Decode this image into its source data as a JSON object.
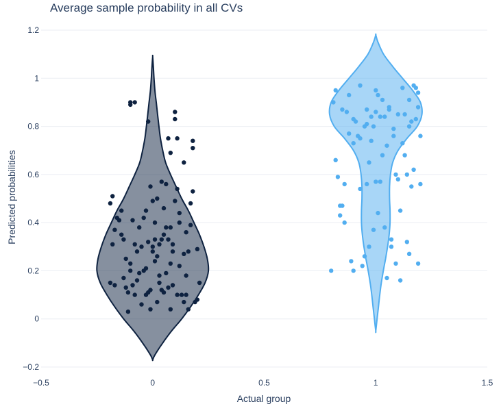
{
  "chart_data": {
    "type": "violin",
    "title": "Average sample probability in all CVs",
    "xlabel": "Actual group",
    "ylabel": "Predicted probabilities",
    "xlim": [
      -0.5,
      1.5
    ],
    "ylim": [
      -0.2,
      1.2
    ],
    "x_ticks": [
      -0.5,
      0,
      0.5,
      1,
      1.5
    ],
    "x_tick_labels": [
      "−0.5",
      "0",
      "0.5",
      "1",
      "1.5"
    ],
    "y_ticks": [
      -0.2,
      0,
      0.2,
      0.4,
      0.6,
      0.8,
      1,
      1.2
    ],
    "y_tick_labels": [
      "−0.2",
      "0",
      "0.2",
      "0.4",
      "0.6",
      "0.8",
      "1",
      "1.2"
    ],
    "grid": true,
    "legend": "none",
    "series": [
      {
        "group": 0,
        "line_color": "#0e2240",
        "fill_color": "#0e2240",
        "fill_opacity": 0.5,
        "violin_profile": [
          [
            -0.17,
            0.0
          ],
          [
            -0.15,
            0.01
          ],
          [
            -0.1,
            0.045
          ],
          [
            -0.05,
            0.085
          ],
          [
            0.0,
            0.13
          ],
          [
            0.05,
            0.17
          ],
          [
            0.1,
            0.205
          ],
          [
            0.15,
            0.235
          ],
          [
            0.2,
            0.25
          ],
          [
            0.25,
            0.245
          ],
          [
            0.3,
            0.23
          ],
          [
            0.35,
            0.21
          ],
          [
            0.4,
            0.185
          ],
          [
            0.45,
            0.16
          ],
          [
            0.5,
            0.13
          ],
          [
            0.55,
            0.105
          ],
          [
            0.6,
            0.08
          ],
          [
            0.65,
            0.058
          ],
          [
            0.7,
            0.045
          ],
          [
            0.75,
            0.035
          ],
          [
            0.8,
            0.028
          ],
          [
            0.85,
            0.022
          ],
          [
            0.9,
            0.016
          ],
          [
            0.95,
            0.01
          ],
          [
            1.0,
            0.006
          ],
          [
            1.05,
            0.003
          ],
          [
            1.09,
            0.0
          ]
        ],
        "points": [
          [
            -0.19,
            0.48
          ],
          [
            -0.18,
            0.51
          ],
          [
            -0.18,
            0.31
          ],
          [
            -0.19,
            0.15
          ],
          [
            -0.17,
            0.14
          ],
          [
            -0.17,
            0.37
          ],
          [
            -0.16,
            0.42
          ],
          [
            -0.15,
            0.41
          ],
          [
            -0.14,
            0.45
          ],
          [
            -0.14,
            0.35
          ],
          [
            -0.13,
            0.33
          ],
          [
            -0.13,
            0.17
          ],
          [
            -0.12,
            0.13
          ],
          [
            -0.12,
            0.25
          ],
          [
            -0.11,
            0.11
          ],
          [
            -0.11,
            0.03
          ],
          [
            -0.1,
            0.23
          ],
          [
            -0.1,
            0.2
          ],
          [
            -0.09,
            0.41
          ],
          [
            -0.09,
            0.14
          ],
          [
            -0.08,
            0.31
          ],
          [
            -0.08,
            0.1
          ],
          [
            -0.1,
            0.9
          ],
          [
            -0.1,
            0.89
          ],
          [
            -0.08,
            0.9
          ],
          [
            -0.07,
            0.28
          ],
          [
            -0.07,
            0.16
          ],
          [
            -0.06,
            0.38
          ],
          [
            -0.06,
            0.19
          ],
          [
            -0.05,
            0.06
          ],
          [
            -0.05,
            0.3
          ],
          [
            -0.04,
            0.2
          ],
          [
            -0.04,
            0.42
          ],
          [
            -0.03,
            0.1
          ],
          [
            -0.03,
            0.21
          ],
          [
            -0.02,
            0.32
          ],
          [
            -0.02,
            0.11
          ],
          [
            -0.01,
            0.12
          ],
          [
            -0.01,
            0.55
          ],
          [
            -0.01,
            0.04
          ],
          [
            -0.02,
            0.82
          ],
          [
            0.0,
            0.49
          ],
          [
            0.0,
            0.28
          ],
          [
            0.01,
            0.24
          ],
          [
            0.01,
            0.33
          ],
          [
            0.02,
            0.07
          ],
          [
            0.02,
            0.5
          ],
          [
            0.03,
            0.18
          ],
          [
            0.03,
            0.15
          ],
          [
            0.04,
            0.57
          ],
          [
            0.04,
            0.33
          ],
          [
            0.05,
            0.11
          ],
          [
            0.05,
            0.35
          ],
          [
            0.06,
            0.38
          ],
          [
            0.06,
            0.56
          ],
          [
            0.07,
            0.75
          ],
          [
            0.07,
            0.33
          ],
          [
            0.07,
            0.13
          ],
          [
            0.08,
            0.04
          ],
          [
            0.08,
            0.38
          ],
          [
            0.09,
            0.28
          ],
          [
            0.09,
            0.14
          ],
          [
            0.1,
            0.83
          ],
          [
            0.1,
            0.86
          ],
          [
            0.1,
            0.49
          ],
          [
            0.11,
            0.1
          ],
          [
            0.11,
            0.54
          ],
          [
            0.12,
            0.4
          ],
          [
            0.12,
            0.22
          ],
          [
            0.13,
            0.1
          ],
          [
            0.14,
            0.07
          ],
          [
            0.14,
            0.27
          ],
          [
            0.15,
            0.36
          ],
          [
            0.15,
            0.1
          ],
          [
            0.16,
            0.04
          ],
          [
            0.16,
            0.28
          ],
          [
            0.17,
            0.39
          ],
          [
            0.17,
            0.48
          ],
          [
            0.18,
            0.53
          ],
          [
            0.18,
            0.74
          ],
          [
            0.18,
            0.71
          ],
          [
            0.19,
            0.07
          ],
          [
            0.2,
            0.29
          ],
          [
            0.2,
            0.08
          ],
          [
            0.21,
            0.15
          ],
          [
            0.14,
            0.65
          ],
          [
            0.08,
            0.69
          ],
          [
            0.11,
            0.75
          ],
          [
            0.05,
            0.46
          ],
          [
            0.03,
            0.31
          ],
          [
            0.0,
            0.3
          ],
          [
            -0.03,
            0.45
          ],
          [
            0.02,
            0.26
          ],
          [
            0.06,
            0.19
          ],
          [
            0.09,
            0.31
          ],
          [
            0.12,
            0.44
          ],
          [
            0.15,
            0.18
          ],
          [
            0.01,
            0.4
          ],
          [
            0.04,
            0.12
          ],
          [
            0.08,
            0.23
          ]
        ]
      },
      {
        "group": 1,
        "line_color": "#52aef0",
        "fill_color": "#52aef0",
        "fill_opacity": 0.5,
        "violin_profile": [
          [
            -0.05,
            0.0
          ],
          [
            0.0,
            0.006
          ],
          [
            0.05,
            0.012
          ],
          [
            0.1,
            0.018
          ],
          [
            0.15,
            0.025
          ],
          [
            0.2,
            0.034
          ],
          [
            0.25,
            0.044
          ],
          [
            0.3,
            0.053
          ],
          [
            0.35,
            0.06
          ],
          [
            0.4,
            0.064
          ],
          [
            0.45,
            0.064
          ],
          [
            0.5,
            0.062
          ],
          [
            0.55,
            0.062
          ],
          [
            0.6,
            0.066
          ],
          [
            0.65,
            0.076
          ],
          [
            0.7,
            0.1
          ],
          [
            0.75,
            0.14
          ],
          [
            0.8,
            0.186
          ],
          [
            0.85,
            0.207
          ],
          [
            0.9,
            0.2
          ],
          [
            0.95,
            0.165
          ],
          [
            1.0,
            0.12
          ],
          [
            1.05,
            0.075
          ],
          [
            1.1,
            0.035
          ],
          [
            1.15,
            0.01
          ],
          [
            1.18,
            0.0
          ]
        ],
        "points": [
          [
            0.8,
            0.2
          ],
          [
            0.81,
            0.9
          ],
          [
            0.82,
            0.95
          ],
          [
            0.82,
            0.66
          ],
          [
            0.83,
            0.59
          ],
          [
            0.84,
            0.47
          ],
          [
            0.84,
            0.43
          ],
          [
            0.85,
            0.47
          ],
          [
            0.86,
            0.4
          ],
          [
            0.86,
            0.56
          ],
          [
            0.87,
            0.86
          ],
          [
            0.88,
            0.93
          ],
          [
            0.89,
            0.24
          ],
          [
            0.9,
            0.2
          ],
          [
            0.9,
            0.73
          ],
          [
            0.91,
            0.82
          ],
          [
            0.92,
            0.76
          ],
          [
            0.93,
            0.97
          ],
          [
            0.93,
            0.75
          ],
          [
            0.94,
            0.22
          ],
          [
            0.95,
            0.26
          ],
          [
            0.96,
            0.81
          ],
          [
            0.96,
            0.87
          ],
          [
            0.97,
            0.3
          ],
          [
            0.98,
            0.74
          ],
          [
            0.98,
            0.84
          ],
          [
            0.99,
            0.37
          ],
          [
            0.99,
            0.8
          ],
          [
            1.0,
            0.95
          ],
          [
            1.0,
            0.57
          ],
          [
            1.01,
            0.93
          ],
          [
            1.02,
            0.84
          ],
          [
            1.03,
            0.68
          ],
          [
            1.03,
            0.91
          ],
          [
            1.04,
            0.84
          ],
          [
            1.05,
            0.72
          ],
          [
            1.05,
            0.17
          ],
          [
            1.06,
            0.88
          ],
          [
            1.07,
            0.3
          ],
          [
            1.08,
            0.79
          ],
          [
            1.09,
            0.6
          ],
          [
            1.09,
            0.23
          ],
          [
            1.1,
            0.58
          ],
          [
            1.11,
            0.16
          ],
          [
            1.12,
            0.96
          ],
          [
            1.12,
            0.73
          ],
          [
            1.13,
            0.85
          ],
          [
            1.14,
            0.32
          ],
          [
            1.14,
            0.6
          ],
          [
            1.15,
            0.91
          ],
          [
            1.15,
            0.27
          ],
          [
            1.16,
            0.82
          ],
          [
            1.17,
            0.97
          ],
          [
            1.17,
            0.62
          ],
          [
            1.18,
            0.83
          ],
          [
            1.18,
            0.96
          ],
          [
            1.19,
            0.94
          ],
          [
            1.19,
            0.23
          ],
          [
            1.2,
            0.76
          ],
          [
            1.2,
            0.56
          ],
          [
            0.88,
            0.77
          ],
          [
            0.93,
            0.54
          ],
          [
            0.97,
            0.65
          ],
          [
            1.01,
            0.44
          ],
          [
            1.04,
            0.38
          ],
          [
            1.07,
            0.33
          ],
          [
            1.11,
            0.45
          ],
          [
            1.13,
            0.68
          ],
          [
            1.16,
            0.55
          ],
          [
            1.19,
            0.88
          ],
          [
            0.85,
            0.87
          ],
          [
            0.9,
            0.83
          ],
          [
            0.95,
            0.8
          ],
          [
            1.0,
            0.86
          ],
          [
            1.06,
            0.87
          ],
          [
            1.1,
            0.85
          ],
          [
            1.15,
            0.8
          ],
          [
            0.96,
            0.56
          ],
          [
            1.02,
            0.57
          ],
          [
            1.08,
            0.76
          ]
        ]
      }
    ]
  }
}
